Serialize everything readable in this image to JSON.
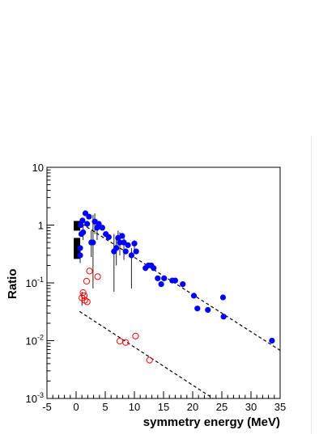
{
  "chart_data": {
    "type": "scatter",
    "title": "",
    "xlabel": "symmetry energy (MeV)",
    "ylabel": "Ratio",
    "xlim": [
      -5,
      35
    ],
    "ylim": [
      0.001,
      10
    ],
    "y_scale": "log",
    "grid": false,
    "x_ticks": [
      -5,
      0,
      5,
      10,
      15,
      20,
      25,
      30,
      35
    ],
    "x_tick_labels": [
      "-5",
      "0",
      "5",
      "10",
      "15",
      "20",
      "25",
      "30",
      "35"
    ],
    "y_ticks": [
      0.001,
      0.01,
      0.1,
      1,
      10
    ],
    "y_tick_labels": [
      {
        "base": "10",
        "exp": "-3"
      },
      {
        "base": "10",
        "exp": "-2"
      },
      {
        "base": "10",
        "exp": "-1"
      },
      {
        "base": "1",
        "exp": ""
      },
      {
        "base": "10",
        "exp": ""
      }
    ],
    "colors": {
      "filled": "#0000ff",
      "open": "#ff0000",
      "bars": "#000000",
      "fit": "#000000"
    },
    "series": [
      {
        "marker": "filled-circle",
        "color": "#0000ff",
        "points": [
          {
            "x": 0.7,
            "y": 0.3,
            "ylo": 0.22,
            "yhi": 0.42
          },
          {
            "x": 0.7,
            "y": 0.4
          },
          {
            "x": 0.8,
            "y": 1.0
          },
          {
            "x": 0.9,
            "y": 0.7
          },
          {
            "x": 1.1,
            "y": 1.2
          },
          {
            "x": 1.2,
            "y": 0.75,
            "ylo": 0.55,
            "yhi": 0.95
          },
          {
            "x": 1.6,
            "y": 1.6
          },
          {
            "x": 1.9,
            "y": 1.05
          },
          {
            "x": 2.2,
            "y": 1.4
          },
          {
            "x": 2.6,
            "y": 0.5,
            "ylo": 0.28,
            "yhi": 0.8
          },
          {
            "x": 2.9,
            "y": 0.5,
            "ylo": 0.08,
            "yhi": 1.5
          },
          {
            "x": 3.2,
            "y": 1.15,
            "ylo": 0.7,
            "yhi": 1.6
          },
          {
            "x": 3.6,
            "y": 0.9,
            "ylo": 0.55,
            "yhi": 1.25
          },
          {
            "x": 3.9,
            "y": 1.05
          },
          {
            "x": 4.5,
            "y": 0.9
          },
          {
            "x": 5.1,
            "y": 0.7
          },
          {
            "x": 5.6,
            "y": 0.62
          },
          {
            "x": 6.5,
            "y": 0.35,
            "ylo": 0.07,
            "yhi": 0.7
          },
          {
            "x": 6.9,
            "y": 0.4,
            "ylo": 0.2,
            "yhi": 0.6
          },
          {
            "x": 7.2,
            "y": 0.6,
            "ylo": 0.4,
            "yhi": 0.8
          },
          {
            "x": 7.5,
            "y": 0.5,
            "ylo": 0.3,
            "yhi": 0.75
          },
          {
            "x": 7.9,
            "y": 0.65
          },
          {
            "x": 8.2,
            "y": 0.5,
            "ylo": 0.25,
            "yhi": 0.7
          },
          {
            "x": 8.5,
            "y": 0.35
          },
          {
            "x": 8.9,
            "y": 0.45
          },
          {
            "x": 9.5,
            "y": 0.3,
            "ylo": 0.08,
            "yhi": 0.4
          },
          {
            "x": 10.0,
            "y": 0.48,
            "ylo": 0.35,
            "yhi": 0.55
          },
          {
            "x": 10.3,
            "y": 0.35
          },
          {
            "x": 11.9,
            "y": 0.18
          },
          {
            "x": 12.4,
            "y": 0.2
          },
          {
            "x": 12.9,
            "y": 0.2
          },
          {
            "x": 13.3,
            "y": 0.18
          },
          {
            "x": 14.0,
            "y": 0.12
          },
          {
            "x": 14.6,
            "y": 0.095
          },
          {
            "x": 15.1,
            "y": 0.12
          },
          {
            "x": 16.5,
            "y": 0.11
          },
          {
            "x": 17.0,
            "y": 0.11
          },
          {
            "x": 18.3,
            "y": 0.095
          },
          {
            "x": 20.2,
            "y": 0.06
          },
          {
            "x": 20.8,
            "y": 0.036
          },
          {
            "x": 22.6,
            "y": 0.034
          },
          {
            "x": 25.2,
            "y": 0.056
          },
          {
            "x": 25.3,
            "y": 0.026
          },
          {
            "x": 33.6,
            "y": 0.01
          }
        ]
      },
      {
        "marker": "open-circle",
        "color": "#ff0000",
        "points": [
          {
            "x": 1.0,
            "y": 0.055,
            "ylo": 0.04,
            "yhi": 0.07
          },
          {
            "x": 1.2,
            "y": 0.068
          },
          {
            "x": 1.4,
            "y": 0.06
          },
          {
            "x": 1.5,
            "y": 0.05
          },
          {
            "x": 1.8,
            "y": 0.107
          },
          {
            "x": 1.9,
            "y": 0.047
          },
          {
            "x": 2.3,
            "y": 0.16
          },
          {
            "x": 3.7,
            "y": 0.128
          },
          {
            "x": 7.5,
            "y": 0.0098
          },
          {
            "x": 8.5,
            "y": 0.0093
          },
          {
            "x": 10.2,
            "y": 0.012
          },
          {
            "x": 12.6,
            "y": 0.0046
          }
        ]
      }
    ],
    "bands": [
      {
        "x": 0.15,
        "ylo": 0.8,
        "yhi": 1.18
      },
      {
        "x": 0.15,
        "ylo": 0.26,
        "yhi": 0.6
      }
    ],
    "fit_lines": [
      {
        "style": "dashed",
        "from": {
          "x": 1.0,
          "y": 1.05
        },
        "to": {
          "x": 35.0,
          "y": 0.0068
        }
      },
      {
        "style": "dashed",
        "from": {
          "x": 0.6,
          "y": 0.032
        },
        "to": {
          "x": 23.5,
          "y": 0.001
        }
      }
    ]
  }
}
